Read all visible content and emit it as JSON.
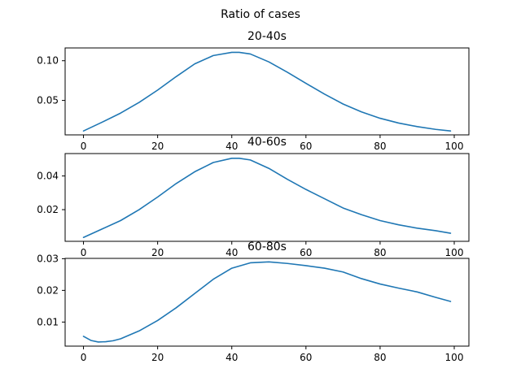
{
  "figure": {
    "title": "Ratio of cases"
  },
  "series_color": "#1f77b4",
  "chart_data": [
    {
      "type": "line",
      "title": "20-40s",
      "xlabel": "",
      "ylabel": "",
      "xlim": [
        -4.95,
        103.95
      ],
      "ylim": [
        0.0066,
        0.1161
      ],
      "xticks": [
        0,
        20,
        40,
        60,
        80,
        100
      ],
      "xtick_labels": [
        "0",
        "20",
        "40",
        "60",
        "80",
        "100"
      ],
      "yticks": [
        0.05,
        0.1
      ],
      "ytick_labels": [
        "0.05",
        "0.10"
      ],
      "grid": false,
      "series": [
        {
          "x": [
            0,
            5,
            10,
            15,
            20,
            25,
            30,
            35,
            40,
            42,
            45,
            50,
            55,
            60,
            65,
            70,
            75,
            80,
            85,
            90,
            95,
            99
          ],
          "y": [
            0.0115,
            0.0225,
            0.034,
            0.0475,
            0.063,
            0.08,
            0.096,
            0.1065,
            0.1105,
            0.1105,
            0.1085,
            0.0985,
            0.0855,
            0.0715,
            0.058,
            0.0455,
            0.0355,
            0.0275,
            0.0215,
            0.017,
            0.0135,
            0.0115
          ]
        }
      ]
    },
    {
      "type": "line",
      "title": "40-60s",
      "xlabel": "",
      "ylabel": "",
      "xlim": [
        -4.95,
        103.95
      ],
      "ylim": [
        0.0012,
        0.0533
      ],
      "xticks": [
        0,
        20,
        40,
        60,
        80,
        100
      ],
      "xtick_labels": [
        "0",
        "20",
        "40",
        "60",
        "80",
        "100"
      ],
      "yticks": [
        0.02,
        0.04
      ],
      "ytick_labels": [
        "0.02",
        "0.04"
      ],
      "grid": false,
      "series": [
        {
          "x": [
            0,
            5,
            10,
            15,
            20,
            25,
            30,
            35,
            40,
            42,
            45,
            50,
            55,
            60,
            65,
            70,
            75,
            80,
            85,
            90,
            95,
            99
          ],
          "y": [
            0.0035,
            0.0085,
            0.0135,
            0.02,
            0.0275,
            0.0355,
            0.0425,
            0.048,
            0.0505,
            0.0505,
            0.0495,
            0.0445,
            0.038,
            0.032,
            0.0265,
            0.021,
            0.017,
            0.0135,
            0.011,
            0.009,
            0.0075,
            0.006
          ]
        }
      ]
    },
    {
      "type": "line",
      "title": "60-80s",
      "xlabel": "",
      "ylabel": "",
      "xlim": [
        -4.95,
        103.95
      ],
      "ylim": [
        0.0024,
        0.0301
      ],
      "xticks": [
        0,
        20,
        40,
        60,
        80,
        100
      ],
      "xtick_labels": [
        "0",
        "20",
        "40",
        "60",
        "80",
        "100"
      ],
      "yticks": [
        0.01,
        0.02,
        0.03
      ],
      "ytick_labels": [
        "0.01",
        "0.02",
        "0.03"
      ],
      "grid": false,
      "series": [
        {
          "x": [
            0,
            2,
            4,
            6,
            8,
            10,
            15,
            20,
            25,
            30,
            35,
            40,
            45,
            50,
            55,
            60,
            65,
            70,
            75,
            80,
            85,
            90,
            95,
            99
          ],
          "y": [
            0.0055,
            0.0042,
            0.0037,
            0.0038,
            0.0041,
            0.0047,
            0.0072,
            0.0105,
            0.0145,
            0.019,
            0.0235,
            0.027,
            0.0287,
            0.029,
            0.0285,
            0.0278,
            0.027,
            0.0258,
            0.0237,
            0.022,
            0.0207,
            0.0195,
            0.0178,
            0.0165
          ]
        }
      ]
    }
  ]
}
